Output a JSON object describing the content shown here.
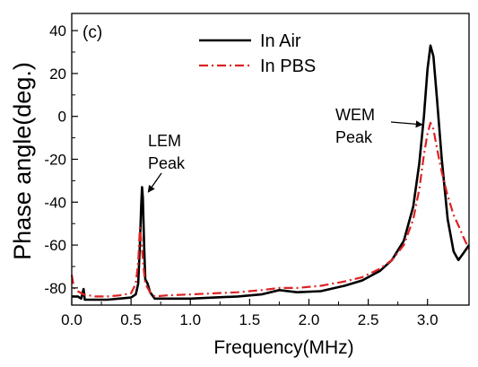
{
  "chart_data": {
    "type": "line",
    "panel_label": "(c)",
    "xlabel": "Frequency(MHz)",
    "ylabel": "Phase angle(deg.)",
    "xlim": [
      0.0,
      3.35
    ],
    "ylim": [
      -88,
      48
    ],
    "xticks": [
      "0.0",
      "0.5",
      "1.0",
      "1.5",
      "2.0",
      "2.5",
      "3.0"
    ],
    "xtick_values": [
      0.0,
      0.5,
      1.0,
      1.5,
      2.0,
      2.5,
      3.0
    ],
    "yticks": [
      "-80",
      "-60",
      "-40",
      "-20",
      "0",
      "20",
      "40"
    ],
    "ytick_values": [
      -80,
      -60,
      -40,
      -20,
      0,
      20,
      40
    ],
    "grid": false,
    "legend_position": "top-center",
    "series": [
      {
        "name": "In Air",
        "color": "#000000",
        "dash": "solid",
        "points": [
          [
            0.0,
            -84
          ],
          [
            0.05,
            -84
          ],
          [
            0.08,
            -85
          ],
          [
            0.1,
            -80.5
          ],
          [
            0.11,
            -85.5
          ],
          [
            0.2,
            -85.5
          ],
          [
            0.3,
            -85.5
          ],
          [
            0.4,
            -85
          ],
          [
            0.5,
            -84.5
          ],
          [
            0.54,
            -83
          ],
          [
            0.56,
            -78
          ],
          [
            0.575,
            -60
          ],
          [
            0.585,
            -42
          ],
          [
            0.593,
            -33
          ],
          [
            0.6,
            -38
          ],
          [
            0.61,
            -60
          ],
          [
            0.62,
            -76
          ],
          [
            0.64,
            -78
          ],
          [
            0.66,
            -82
          ],
          [
            0.7,
            -85
          ],
          [
            0.8,
            -85
          ],
          [
            1.0,
            -85
          ],
          [
            1.2,
            -84.5
          ],
          [
            1.4,
            -84
          ],
          [
            1.6,
            -83
          ],
          [
            1.75,
            -81
          ],
          [
            1.9,
            -82
          ],
          [
            2.1,
            -81.5
          ],
          [
            2.3,
            -79
          ],
          [
            2.45,
            -76.5
          ],
          [
            2.6,
            -72
          ],
          [
            2.7,
            -67
          ],
          [
            2.8,
            -58
          ],
          [
            2.88,
            -42
          ],
          [
            2.93,
            -22
          ],
          [
            2.97,
            0
          ],
          [
            3.0,
            22
          ],
          [
            3.025,
            33
          ],
          [
            3.05,
            28
          ],
          [
            3.08,
            8
          ],
          [
            3.12,
            -20
          ],
          [
            3.17,
            -48
          ],
          [
            3.22,
            -63
          ],
          [
            3.26,
            -67
          ],
          [
            3.3,
            -64
          ],
          [
            3.35,
            -60
          ]
        ]
      },
      {
        "name": "In PBS",
        "color": "#dd2222",
        "dash": "dashdot",
        "points": [
          [
            0.0,
            -74
          ],
          [
            0.02,
            -80
          ],
          [
            0.05,
            -81.5
          ],
          [
            0.1,
            -83
          ],
          [
            0.2,
            -84
          ],
          [
            0.3,
            -84
          ],
          [
            0.4,
            -83.5
          ],
          [
            0.5,
            -82.5
          ],
          [
            0.54,
            -78
          ],
          [
            0.56,
            -68
          ],
          [
            0.575,
            -52
          ],
          [
            0.59,
            -60
          ],
          [
            0.605,
            -70
          ],
          [
            0.62,
            -78
          ],
          [
            0.64,
            -80
          ],
          [
            0.66,
            -82
          ],
          [
            0.7,
            -84
          ],
          [
            0.8,
            -83.5
          ],
          [
            1.0,
            -83
          ],
          [
            1.2,
            -82.5
          ],
          [
            1.4,
            -82
          ],
          [
            1.6,
            -81
          ],
          [
            1.75,
            -80
          ],
          [
            1.9,
            -80
          ],
          [
            2.1,
            -79
          ],
          [
            2.3,
            -77
          ],
          [
            2.45,
            -75
          ],
          [
            2.6,
            -71
          ],
          [
            2.7,
            -67
          ],
          [
            2.8,
            -60
          ],
          [
            2.88,
            -48
          ],
          [
            2.93,
            -34
          ],
          [
            2.97,
            -18
          ],
          [
            3.0,
            -8
          ],
          [
            3.025,
            -3
          ],
          [
            3.05,
            -6
          ],
          [
            3.08,
            -15
          ],
          [
            3.12,
            -26
          ],
          [
            3.17,
            -37
          ],
          [
            3.22,
            -46
          ],
          [
            3.27,
            -52
          ],
          [
            3.3,
            -56
          ],
          [
            3.35,
            -62
          ]
        ]
      }
    ],
    "annotations": [
      {
        "lines": [
          "LEM",
          "Peak"
        ],
        "target": [
          0.6,
          -34
        ]
      },
      {
        "lines": [
          "WEM",
          "Peak"
        ],
        "target": [
          3.0,
          -3
        ]
      }
    ]
  }
}
